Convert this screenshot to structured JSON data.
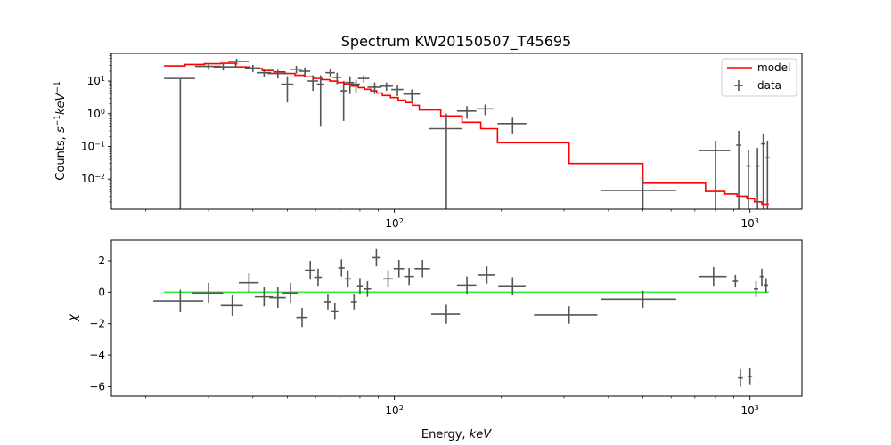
{
  "chart_data": [
    {
      "type": "scatter",
      "panel": "spectrum",
      "title": "Spectrum KW20150507_T45695",
      "ylabel": "Counts, s^{-1}keV^{-1}",
      "xscale": "log",
      "yscale": "log",
      "xlim": [
        16,
        1400
      ],
      "ylim": [
        0.0012,
        70
      ],
      "x_ticks": [
        100,
        1000
      ],
      "x_tick_labels": [
        "10^2",
        "10^3"
      ],
      "y_ticks": [
        0.01,
        0.1,
        1,
        10
      ],
      "y_tick_labels": [
        "10^{-2}",
        "10^{-1}",
        "10^{0}",
        "10^{1}"
      ],
      "legend": {
        "position": "top-right",
        "entries": [
          {
            "label": "model",
            "color": "#ff0000"
          },
          {
            "label": "data",
            "color": "#555555"
          }
        ]
      },
      "model": {
        "name": "model",
        "color": "#ff0000",
        "edges": [
          22.5,
          25.8,
          29.2,
          32.5,
          35.8,
          39.2,
          42.5,
          45.8,
          49.2,
          52.5,
          55.8,
          59.2,
          62.5,
          65.8,
          69.2,
          72.5,
          75.8,
          79.2,
          82.5,
          85.8,
          89.2,
          92.5,
          97.5,
          102.5,
          107.5,
          112.5,
          117.5,
          135,
          155,
          175,
          195,
          250,
          310,
          500,
          750,
          850,
          920,
          980,
          1030,
          1080,
          1130
        ],
        "values": [
          29,
          32,
          34,
          35,
          27,
          24,
          21,
          19,
          17,
          15,
          13.5,
          12,
          11,
          10,
          9,
          8,
          7,
          6.3,
          5.6,
          5.0,
          4.3,
          3.6,
          3.1,
          2.6,
          2.2,
          1.8,
          1.3,
          0.85,
          0.55,
          0.35,
          0.13,
          0.13,
          0.03,
          0.0075,
          0.0042,
          0.0035,
          0.003,
          0.0025,
          0.002,
          0.0017
        ]
      },
      "data": {
        "name": "data",
        "color": "#555555",
        "points": [
          {
            "x": 25,
            "xlo": 22.5,
            "xhi": 27.5,
            "y": 12,
            "ylo": 0.0001,
            "yhi": 12
          },
          {
            "x": 30,
            "xlo": 27.5,
            "xhi": 32.5,
            "y": 28,
            "ylo": 22,
            "yhi": 35
          },
          {
            "x": 33,
            "xlo": 31,
            "xhi": 36,
            "y": 27,
            "ylo": 21,
            "yhi": 34
          },
          {
            "x": 36,
            "xlo": 34,
            "xhi": 39,
            "y": 40,
            "ylo": 32,
            "yhi": 48
          },
          {
            "x": 40,
            "xlo": 38,
            "xhi": 42,
            "y": 25,
            "ylo": 19,
            "yhi": 31
          },
          {
            "x": 43,
            "xlo": 41,
            "xhi": 45,
            "y": 18,
            "ylo": 13,
            "yhi": 23
          },
          {
            "x": 47,
            "xlo": 44,
            "xhi": 50,
            "y": 17,
            "ylo": 12,
            "yhi": 22
          },
          {
            "x": 50,
            "xlo": 48,
            "xhi": 52,
            "y": 8,
            "ylo": 2.2,
            "yhi": 14
          },
          {
            "x": 53,
            "xlo": 51,
            "xhi": 55,
            "y": 23,
            "ylo": 17,
            "yhi": 29
          },
          {
            "x": 56,
            "xlo": 54,
            "xhi": 58,
            "y": 20,
            "ylo": 14,
            "yhi": 26
          },
          {
            "x": 59,
            "xlo": 57,
            "xhi": 61,
            "y": 10,
            "ylo": 5,
            "yhi": 15
          },
          {
            "x": 62,
            "xlo": 60.5,
            "xhi": 63.5,
            "y": 8,
            "ylo": 0.4,
            "yhi": 15
          },
          {
            "x": 66,
            "xlo": 64,
            "xhi": 68,
            "y": 18,
            "ylo": 13,
            "yhi": 23
          },
          {
            "x": 69,
            "xlo": 67,
            "xhi": 71,
            "y": 13,
            "ylo": 8,
            "yhi": 18
          },
          {
            "x": 72,
            "xlo": 70.5,
            "xhi": 73.5,
            "y": 5,
            "ylo": 0.6,
            "yhi": 10
          },
          {
            "x": 75,
            "xlo": 73,
            "xhi": 77,
            "y": 9,
            "ylo": 4,
            "yhi": 14
          },
          {
            "x": 78,
            "xlo": 76,
            "xhi": 80,
            "y": 8,
            "ylo": 4.5,
            "yhi": 11
          },
          {
            "x": 82,
            "xlo": 79,
            "xhi": 85,
            "y": 12,
            "ylo": 9,
            "yhi": 15
          },
          {
            "x": 88,
            "xlo": 84,
            "xhi": 92,
            "y": 6.5,
            "ylo": 4,
            "yhi": 9
          },
          {
            "x": 95,
            "xlo": 91,
            "xhi": 99,
            "y": 7,
            "ylo": 5,
            "yhi": 9
          },
          {
            "x": 102,
            "xlo": 98,
            "xhi": 106,
            "y": 5.5,
            "ylo": 3.5,
            "yhi": 7.5
          },
          {
            "x": 112,
            "xlo": 106,
            "xhi": 118,
            "y": 4,
            "ylo": 2.5,
            "yhi": 5.5
          },
          {
            "x": 140,
            "xlo": 125,
            "xhi": 155,
            "y": 0.35,
            "ylo": 0.0001,
            "yhi": 1
          },
          {
            "x": 160,
            "xlo": 150,
            "xhi": 170,
            "y": 1.2,
            "ylo": 0.7,
            "yhi": 1.7
          },
          {
            "x": 180,
            "xlo": 170,
            "xhi": 190,
            "y": 1.4,
            "ylo": 0.9,
            "yhi": 1.9
          },
          {
            "x": 215,
            "xlo": 195,
            "xhi": 235,
            "y": 0.5,
            "ylo": 0.25,
            "yhi": 0.75
          },
          {
            "x": 500,
            "xlo": 380,
            "xhi": 620,
            "y": 0.0045,
            "ylo": 0.0001,
            "yhi": 0.01
          },
          {
            "x": 800,
            "xlo": 720,
            "xhi": 880,
            "y": 0.075,
            "ylo": 0.0001,
            "yhi": 0.15
          },
          {
            "x": 930,
            "xlo": 915,
            "xhi": 945,
            "y": 0.11,
            "ylo": 0.0001,
            "yhi": 0.3
          },
          {
            "x": 990,
            "xlo": 975,
            "xhi": 1005,
            "y": 0.025,
            "ylo": 0.0001,
            "yhi": 0.08
          },
          {
            "x": 1050,
            "xlo": 1035,
            "xhi": 1065,
            "y": 0.025,
            "ylo": 0.0001,
            "yhi": 0.09
          },
          {
            "x": 1090,
            "xlo": 1075,
            "xhi": 1105,
            "y": 0.12,
            "ylo": 0.0001,
            "yhi": 0.25
          },
          {
            "x": 1120,
            "xlo": 1105,
            "xhi": 1135,
            "y": 0.045,
            "ylo": 0.0001,
            "yhi": 0.15
          }
        ]
      }
    },
    {
      "type": "scatter",
      "panel": "residuals",
      "xlabel": "Energy, keV",
      "ylabel": "χ",
      "xscale": "log",
      "xlim": [
        16,
        1400
      ],
      "ylim": [
        -6.6,
        3.3
      ],
      "x_ticks": [
        100,
        1000
      ],
      "x_tick_labels": [
        "10^2",
        "10^3"
      ],
      "y_ticks": [
        -6,
        -4,
        -2,
        0,
        2
      ],
      "y_tick_labels": [
        "−6",
        "−4",
        "−2",
        "0",
        "2"
      ],
      "zero_line": {
        "color": "#33ee33",
        "x_from": 22.5,
        "x_to": 1130,
        "y": 0
      },
      "data": {
        "color": "#555555",
        "points": [
          {
            "x": 25,
            "xlo": 21,
            "xhi": 29,
            "y": -0.55,
            "ylo": -1.25,
            "yhi": 0.15
          },
          {
            "x": 30,
            "xlo": 27,
            "xhi": 33,
            "y": -0.05,
            "ylo": -0.7,
            "yhi": 0.6
          },
          {
            "x": 35,
            "xlo": 32.5,
            "xhi": 37.5,
            "y": -0.85,
            "ylo": -1.5,
            "yhi": -0.2
          },
          {
            "x": 39,
            "xlo": 36.5,
            "xhi": 41.5,
            "y": 0.6,
            "ylo": 0.0,
            "yhi": 1.2
          },
          {
            "x": 43,
            "xlo": 40.5,
            "xhi": 45.5,
            "y": -0.3,
            "ylo": -0.9,
            "yhi": 0.3
          },
          {
            "x": 47,
            "xlo": 44.5,
            "xhi": 49.5,
            "y": -0.35,
            "ylo": -1.0,
            "yhi": 0.3
          },
          {
            "x": 51,
            "xlo": 48.5,
            "xhi": 53.5,
            "y": -0.05,
            "ylo": -0.7,
            "yhi": 0.6
          },
          {
            "x": 55,
            "xlo": 53,
            "xhi": 57,
            "y": -1.6,
            "ylo": -2.2,
            "yhi": -1.0
          },
          {
            "x": 58,
            "xlo": 56,
            "xhi": 60,
            "y": 1.4,
            "ylo": 0.8,
            "yhi": 2.0
          },
          {
            "x": 61,
            "xlo": 59.5,
            "xhi": 62.5,
            "y": 0.95,
            "ylo": 0.4,
            "yhi": 1.5
          },
          {
            "x": 65,
            "xlo": 63.5,
            "xhi": 66.5,
            "y": -0.6,
            "ylo": -1.1,
            "yhi": -0.1
          },
          {
            "x": 68,
            "xlo": 66.5,
            "xhi": 69.5,
            "y": -1.2,
            "ylo": -1.7,
            "yhi": -0.7
          },
          {
            "x": 71,
            "xlo": 69.5,
            "xhi": 72.5,
            "y": 1.55,
            "ylo": 1.0,
            "yhi": 2.1
          },
          {
            "x": 74,
            "xlo": 72.5,
            "xhi": 75.5,
            "y": 0.85,
            "ylo": 0.3,
            "yhi": 1.4
          },
          {
            "x": 77,
            "xlo": 75.5,
            "xhi": 78.5,
            "y": -0.6,
            "ylo": -1.1,
            "yhi": -0.1
          },
          {
            "x": 80,
            "xlo": 78.5,
            "xhi": 81.5,
            "y": 0.4,
            "ylo": -0.1,
            "yhi": 0.9
          },
          {
            "x": 84,
            "xlo": 82,
            "xhi": 86,
            "y": 0.2,
            "ylo": -0.3,
            "yhi": 0.7
          },
          {
            "x": 89,
            "xlo": 86.5,
            "xhi": 91.5,
            "y": 2.2,
            "ylo": 1.65,
            "yhi": 2.75
          },
          {
            "x": 96,
            "xlo": 93,
            "xhi": 99,
            "y": 0.85,
            "ylo": 0.3,
            "yhi": 1.4
          },
          {
            "x": 103,
            "xlo": 99.5,
            "xhi": 106.5,
            "y": 1.5,
            "ylo": 0.95,
            "yhi": 2.05
          },
          {
            "x": 110,
            "xlo": 106.5,
            "xhi": 113.5,
            "y": 1.0,
            "ylo": 0.45,
            "yhi": 1.55
          },
          {
            "x": 120,
            "xlo": 114,
            "xhi": 126,
            "y": 1.5,
            "ylo": 0.95,
            "yhi": 2.05
          },
          {
            "x": 140,
            "xlo": 127,
            "xhi": 153,
            "y": -1.4,
            "ylo": -2.0,
            "yhi": -0.8
          },
          {
            "x": 160,
            "xlo": 150,
            "xhi": 170,
            "y": 0.45,
            "ylo": -0.1,
            "yhi": 1.0
          },
          {
            "x": 182,
            "xlo": 172,
            "xhi": 192,
            "y": 1.1,
            "ylo": 0.55,
            "yhi": 1.65
          },
          {
            "x": 215,
            "xlo": 196,
            "xhi": 234,
            "y": 0.4,
            "ylo": -0.15,
            "yhi": 0.95
          },
          {
            "x": 310,
            "xlo": 247,
            "xhi": 372,
            "y": -1.45,
            "ylo": -2.0,
            "yhi": -0.9
          },
          {
            "x": 500,
            "xlo": 380,
            "xhi": 620,
            "y": -0.45,
            "ylo": -1.0,
            "yhi": 0.1
          },
          {
            "x": 790,
            "xlo": 720,
            "xhi": 860,
            "y": 1.0,
            "ylo": 0.4,
            "yhi": 1.6
          },
          {
            "x": 910,
            "xlo": 895,
            "xhi": 925,
            "y": 0.7,
            "ylo": 0.3,
            "yhi": 1.1
          },
          {
            "x": 940,
            "xlo": 925,
            "xhi": 955,
            "y": -5.45,
            "ylo": -6.0,
            "yhi": -4.9
          },
          {
            "x": 1000,
            "xlo": 985,
            "xhi": 1015,
            "y": -5.35,
            "ylo": -5.9,
            "yhi": -4.8
          },
          {
            "x": 1040,
            "xlo": 1025,
            "xhi": 1055,
            "y": 0.2,
            "ylo": -0.3,
            "yhi": 0.7
          },
          {
            "x": 1080,
            "xlo": 1065,
            "xhi": 1095,
            "y": 1.0,
            "ylo": 0.4,
            "yhi": 1.5
          },
          {
            "x": 1110,
            "xlo": 1095,
            "xhi": 1125,
            "y": 0.45,
            "ylo": 0.0,
            "yhi": 0.9
          }
        ]
      }
    }
  ]
}
